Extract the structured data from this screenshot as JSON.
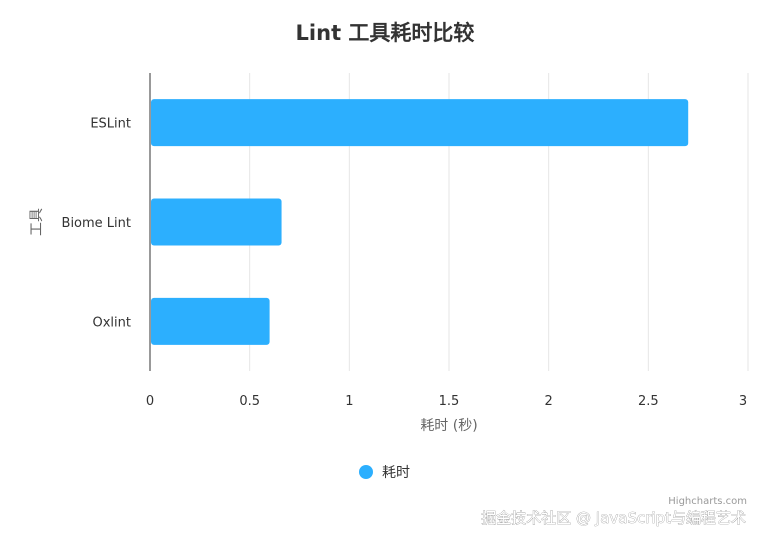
{
  "chart_data": {
    "type": "bar",
    "orientation": "horizontal",
    "title": "Lint 工具耗时比较",
    "categories": [
      "ESLint",
      "Biome Lint",
      "Oxlint"
    ],
    "series": [
      {
        "name": "耗时",
        "color": "#2caffe",
        "values": [
          2.7,
          0.66,
          0.6
        ]
      }
    ],
    "xlabel": "耗时 (秒)",
    "ylabel": "工具",
    "xlim": [
      0,
      3
    ],
    "xticks": [
      "0",
      "0.5",
      "1",
      "1.5",
      "2",
      "2.5",
      "3"
    ],
    "grid": true,
    "legend_position": "bottom-center"
  },
  "credits": "Highcharts.com",
  "watermark": "掘金技术社区 @ JavaScript与编程艺术"
}
